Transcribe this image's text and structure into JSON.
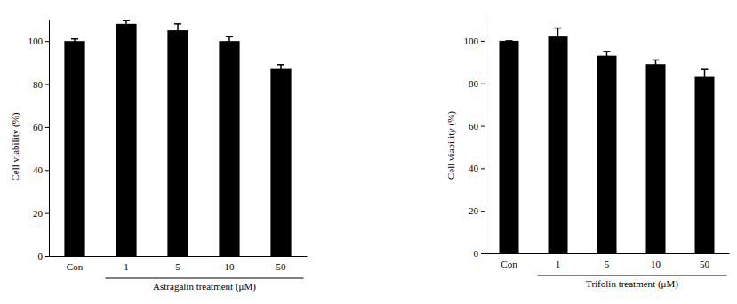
{
  "chart_data": [
    {
      "type": "bar",
      "categories": [
        "Con",
        "1",
        "5",
        "10",
        "50"
      ],
      "values": [
        100,
        108,
        105,
        100,
        87
      ],
      "errors": [
        1,
        1.5,
        3,
        2,
        2
      ],
      "color": "#000000",
      "x_label": "Astragalin treatment (μM)",
      "y_label": "Cell viability (%)",
      "ylim": [
        0,
        110
      ],
      "yticks": [
        0,
        20,
        40,
        60,
        80,
        100
      ]
    },
    {
      "type": "bar",
      "categories": [
        "Con",
        "1",
        "5",
        "10",
        "50"
      ],
      "values": [
        100,
        102,
        93,
        89,
        83
      ],
      "errors": [
        0,
        4,
        2,
        2,
        3.5
      ],
      "color": "#000000",
      "x_label": "Trifolin treatment (μM)",
      "y_label": "Cell viability (%)",
      "ylim": [
        0,
        110
      ],
      "yticks": [
        0,
        20,
        40,
        60,
        80,
        100
      ]
    }
  ]
}
